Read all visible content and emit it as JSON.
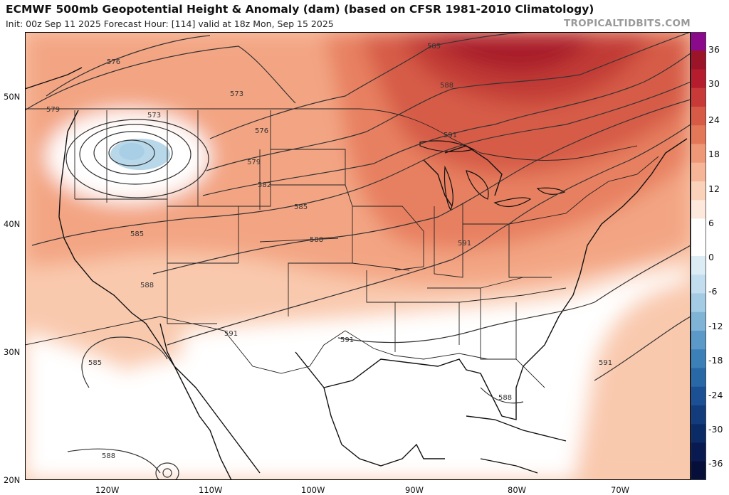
{
  "header": {
    "title": "ECMWF 500mb Geopotential Height & Anomaly (dam) (based on CFSR 1981-2010 Climatology)",
    "subtitle": "Init: 00z Sep 11 2025   Forecast Hour: [114]   valid at 18z Mon, Sep 15 2025",
    "brand": "TROPICALTIDBITS.COM"
  },
  "map": {
    "lat_labels": [
      "50N",
      "40N",
      "30N",
      "20N"
    ],
    "lon_labels": [
      "120W",
      "110W",
      "100W",
      "90W",
      "80W",
      "70W"
    ],
    "contour_labels": [
      "576",
      "579",
      "573",
      "573",
      "576",
      "579",
      "582",
      "585",
      "585",
      "588",
      "588",
      "591",
      "591",
      "591",
      "585",
      "588",
      "588",
      "591",
      "585",
      "588",
      "591"
    ],
    "low_center_color": "#b8d8ea"
  },
  "colorbar": {
    "labels": [
      "36",
      "30",
      "24",
      "18",
      "12",
      "6",
      "0",
      "-6",
      "-12",
      "-18",
      "-24",
      "-30",
      "-36"
    ],
    "colors": [
      "#8b0a8b",
      "#9c1427",
      "#b51d2e",
      "#c73a37",
      "#d75a46",
      "#e37859",
      "#ee9878",
      "#f6b596",
      "#fad2ba",
      "#fde8dc",
      "#ffffff",
      "#ffffff",
      "#dcecf5",
      "#c2ddee",
      "#a3cbe4",
      "#7fb4d7",
      "#5a99c8",
      "#3c80b8",
      "#2968a6",
      "#1b5194",
      "#123c7c",
      "#0b2b66",
      "#081a4f",
      "#060e3a"
    ]
  }
}
